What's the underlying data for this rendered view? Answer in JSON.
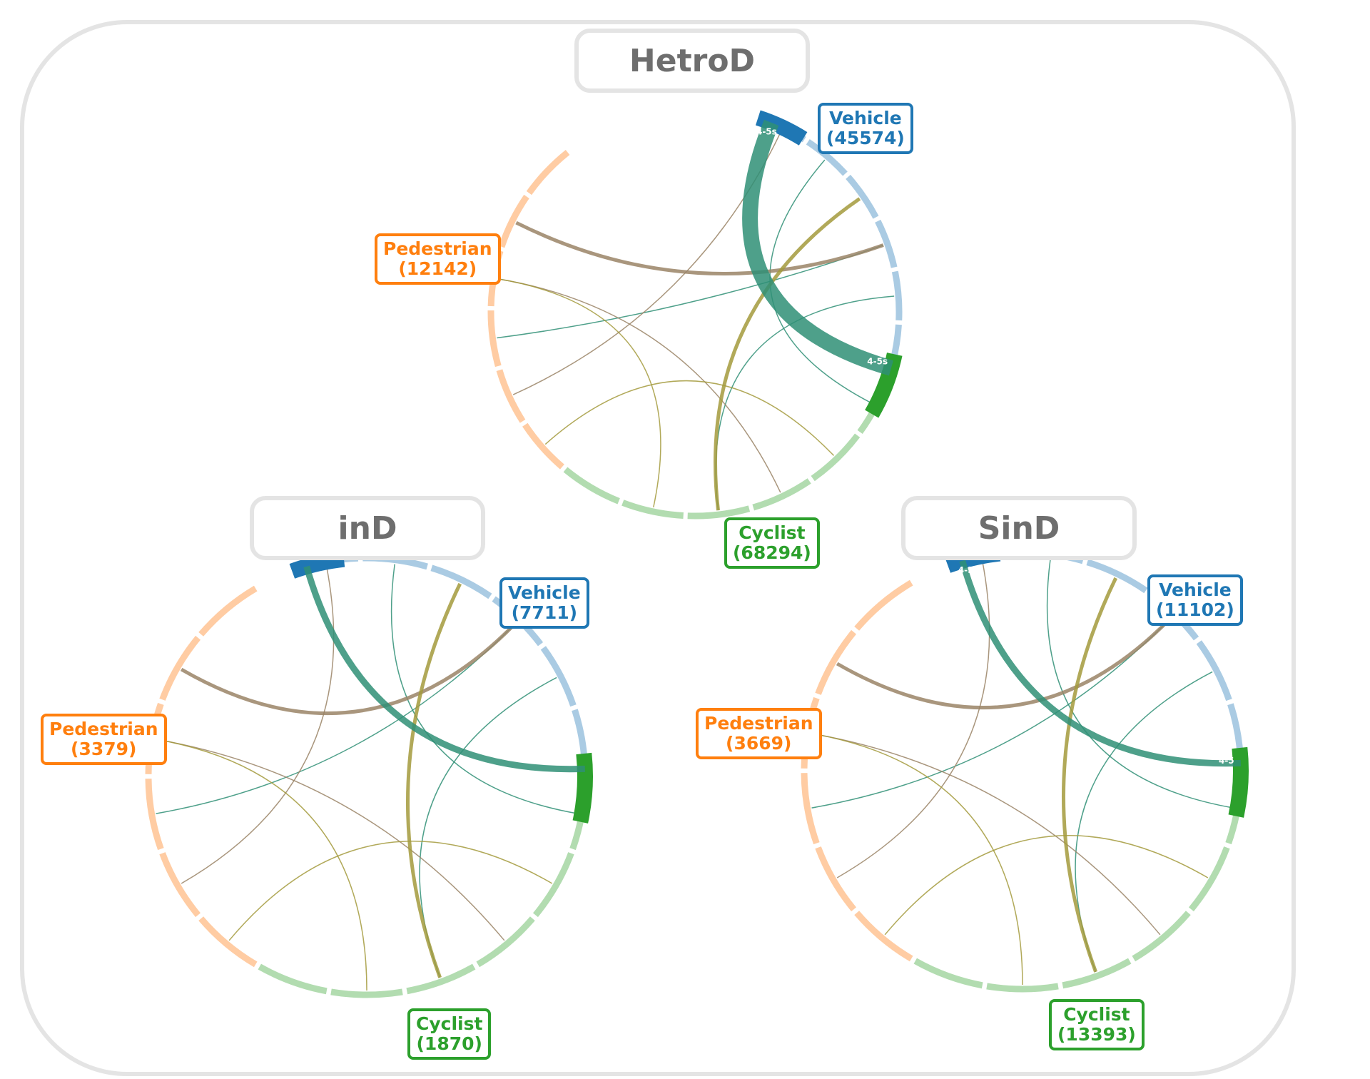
{
  "chart_data": [
    {
      "type": "chord",
      "title": "HetroD",
      "categories": [
        {
          "name": "Vehicle",
          "count": "(45574)",
          "color": "#1f77b4"
        },
        {
          "name": "Pedestrian",
          "count": "(12142)",
          "color": "#ff7f0e"
        },
        {
          "name": "Cyclist",
          "count": "(68294)",
          "color": "#2ca02c"
        }
      ],
      "annotations": [
        "4-5s",
        "4-5s"
      ],
      "legend": {
        "Vehicle": {
          "position": "top-right"
        },
        "Pedestrian": {
          "position": "left"
        },
        "Cyclist": {
          "position": "bottom"
        }
      }
    },
    {
      "type": "chord",
      "title": "inD",
      "categories": [
        {
          "name": "Vehicle",
          "count": "(7711)",
          "color": "#1f77b4"
        },
        {
          "name": "Pedestrian",
          "count": "(3379)",
          "color": "#ff7f0e"
        },
        {
          "name": "Cyclist",
          "count": "(1870)",
          "color": "#2ca02c"
        }
      ],
      "annotations": [],
      "legend": {
        "Vehicle": {
          "position": "top-right"
        },
        "Pedestrian": {
          "position": "left"
        },
        "Cyclist": {
          "position": "bottom"
        }
      }
    },
    {
      "type": "chord",
      "title": "SinD",
      "categories": [
        {
          "name": "Vehicle",
          "count": "(11102)",
          "color": "#1f77b4"
        },
        {
          "name": "Pedestrian",
          "count": "(3669)",
          "color": "#ff7f0e"
        },
        {
          "name": "Cyclist",
          "count": "(13393)",
          "color": "#2ca02c"
        }
      ],
      "annotations": [
        "4-5",
        "4-5"
      ],
      "legend": {
        "Vehicle": {
          "position": "top-right"
        },
        "Pedestrian": {
          "position": "left"
        },
        "Cyclist": {
          "position": "bottom"
        }
      }
    }
  ]
}
